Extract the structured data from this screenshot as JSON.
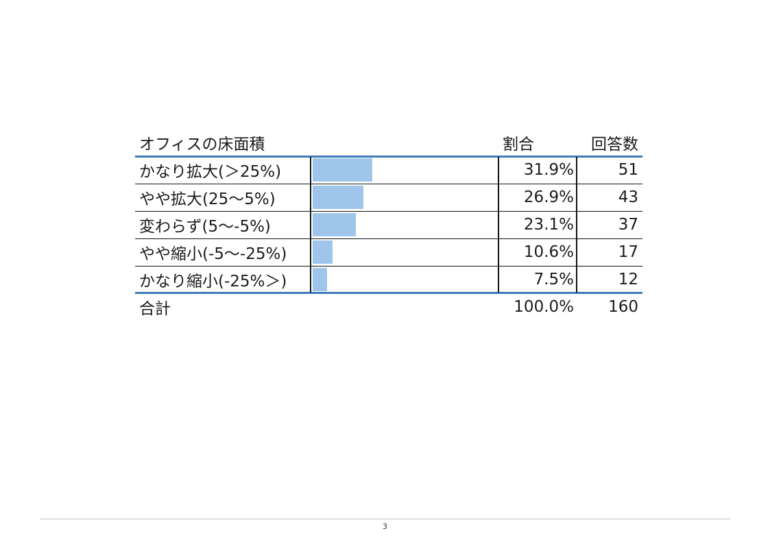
{
  "table": {
    "headers": {
      "label": "オフィスの床面積",
      "pct": "割合",
      "count": "回答数"
    },
    "rows": [
      {
        "label": "かなり拡大(＞25%)",
        "pct": "31.9%",
        "count": "51",
        "share": 31.9
      },
      {
        "label": "やや拡大(25～5%)",
        "pct": "26.9%",
        "count": "43",
        "share": 26.9
      },
      {
        "label": "変わらず(5～-5%)",
        "pct": "23.1%",
        "count": "37",
        "share": 23.1
      },
      {
        "label": "やや縮小(-5～-25%)",
        "pct": "10.6%",
        "count": "17",
        "share": 10.6
      },
      {
        "label": "かなり縮小(-25%＞)",
        "pct": "7.5%",
        "count": "12",
        "share": 7.5
      }
    ],
    "total": {
      "label": "合計",
      "pct": "100.0%",
      "count": "160"
    },
    "bar_color": "#9fc5ea",
    "rule_color": "#3e7ab8"
  },
  "footer": {
    "page_number": "3"
  }
}
